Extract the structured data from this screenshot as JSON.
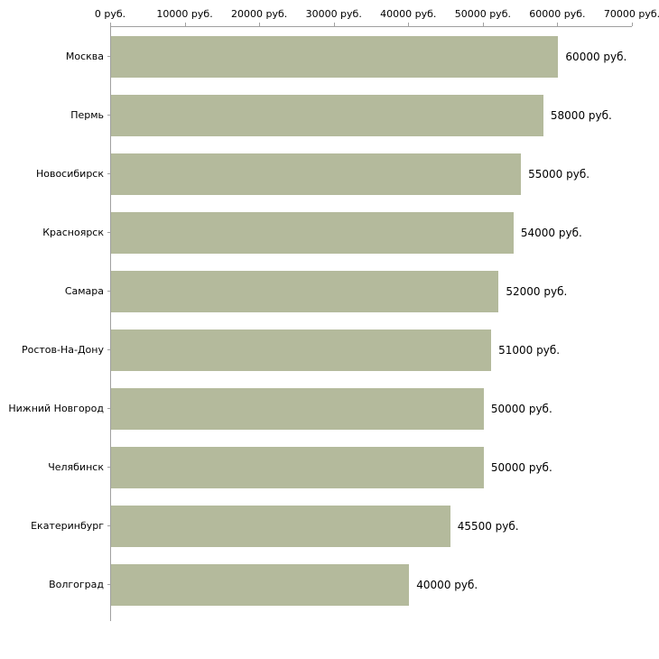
{
  "chart_data": {
    "type": "bar",
    "orientation": "horizontal",
    "title": "",
    "xlabel": "",
    "ylabel": "",
    "xlim": [
      0,
      70000
    ],
    "grid": false,
    "legend": false,
    "bar_color": "#b4ba9c",
    "axis_color": "#a0a0a0",
    "x_ticks": [
      0,
      10000,
      20000,
      30000,
      40000,
      50000,
      60000,
      70000
    ],
    "x_tick_labels": [
      "0 руб.",
      "10000 руб.",
      "20000 руб.",
      "30000 руб.",
      "40000 руб.",
      "50000 руб.",
      "60000 руб.",
      "70000 руб."
    ],
    "categories": [
      "Москва",
      "Пермь",
      "Новосибирск",
      "Красноярск",
      "Самара",
      "Ростов-На-Дону",
      "Нижний Новгород",
      "Челябинск",
      "Екатеринбург",
      "Волгоград"
    ],
    "values": [
      60000,
      58000,
      55000,
      54000,
      52000,
      51000,
      50000,
      50000,
      45500,
      40000
    ],
    "value_labels": [
      "60000 руб.",
      "58000 руб.",
      "55000 руб.",
      "54000 руб.",
      "52000 руб.",
      "51000 руб.",
      "50000 руб.",
      "50000 руб.",
      "45500 руб.",
      "40000 руб."
    ]
  }
}
